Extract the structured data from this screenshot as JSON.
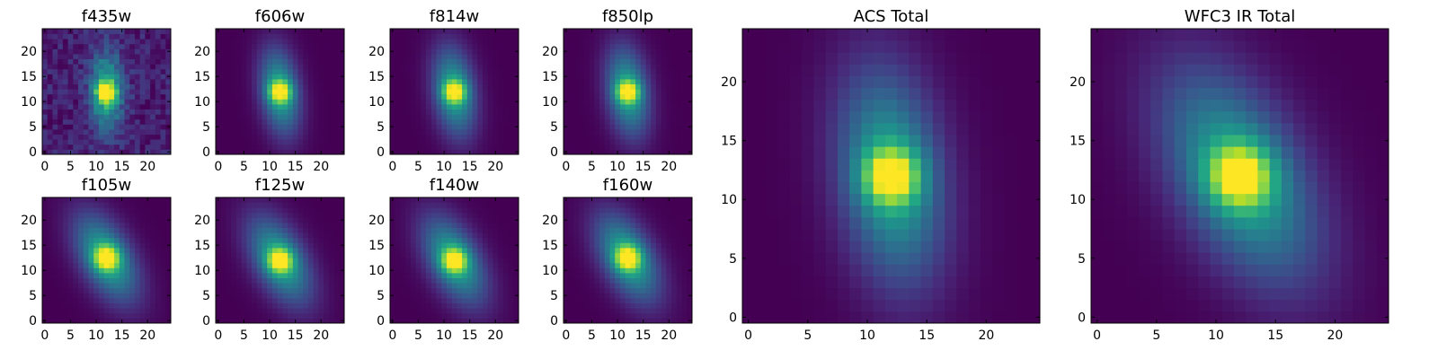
{
  "chart_data": [
    {
      "type": "heatmap",
      "title": "f435w",
      "xlim": [
        0,
        24
      ],
      "ylim": [
        0,
        24
      ],
      "xticks": [
        0,
        5,
        10,
        15,
        20
      ],
      "yticks": [
        0,
        5,
        10,
        15,
        20
      ],
      "grid_size": 25,
      "center": [
        12,
        12
      ],
      "core_sigma": 1.4,
      "halo_sigma": [
        2.2,
        5.5
      ],
      "angle_deg": 0,
      "noise": 0.16,
      "colormap": "viridis"
    },
    {
      "type": "heatmap",
      "title": "f606w",
      "xlim": [
        0,
        24
      ],
      "ylim": [
        0,
        24
      ],
      "xticks": [
        0,
        5,
        10,
        15,
        20
      ],
      "yticks": [
        0,
        5,
        10,
        15,
        20
      ],
      "grid_size": 25,
      "center": [
        12,
        12
      ],
      "core_sigma": 1.5,
      "halo_sigma": [
        2.6,
        6.0
      ],
      "angle_deg": -8,
      "noise": 0.0,
      "colormap": "viridis"
    },
    {
      "type": "heatmap",
      "title": "f814w",
      "xlim": [
        0,
        24
      ],
      "ylim": [
        0,
        24
      ],
      "xticks": [
        0,
        5,
        10,
        15,
        20
      ],
      "yticks": [
        0,
        5,
        10,
        15,
        20
      ],
      "grid_size": 25,
      "center": [
        12,
        12
      ],
      "core_sigma": 1.5,
      "halo_sigma": [
        2.8,
        6.2
      ],
      "angle_deg": -8,
      "noise": 0.0,
      "colormap": "viridis"
    },
    {
      "type": "heatmap",
      "title": "f850lp",
      "xlim": [
        0,
        24
      ],
      "ylim": [
        0,
        24
      ],
      "xticks": [
        0,
        5,
        10,
        15,
        20
      ],
      "yticks": [
        0,
        5,
        10,
        15,
        20
      ],
      "grid_size": 25,
      "center": [
        12,
        12
      ],
      "core_sigma": 1.5,
      "halo_sigma": [
        2.8,
        6.2
      ],
      "angle_deg": -8,
      "noise": 0.0,
      "colormap": "viridis"
    },
    {
      "type": "heatmap",
      "title": "f105w",
      "xlim": [
        0,
        24
      ],
      "ylim": [
        0,
        24
      ],
      "xticks": [
        0,
        5,
        10,
        15,
        20
      ],
      "yticks": [
        0,
        5,
        10,
        15,
        20
      ],
      "grid_size": 25,
      "center": [
        12,
        12.5
      ],
      "core_sigma": 1.7,
      "halo_sigma": [
        3.4,
        6.6
      ],
      "angle_deg": -28,
      "noise": 0.0,
      "colormap": "viridis"
    },
    {
      "type": "heatmap",
      "title": "f125w",
      "xlim": [
        0,
        24
      ],
      "ylim": [
        0,
        24
      ],
      "xticks": [
        0,
        5,
        10,
        15,
        20
      ],
      "yticks": [
        0,
        5,
        10,
        15,
        20
      ],
      "grid_size": 25,
      "center": [
        12,
        12
      ],
      "core_sigma": 1.7,
      "halo_sigma": [
        3.4,
        6.6
      ],
      "angle_deg": -28,
      "noise": 0.0,
      "colormap": "viridis"
    },
    {
      "type": "heatmap",
      "title": "f140w",
      "xlim": [
        0,
        24
      ],
      "ylim": [
        0,
        24
      ],
      "xticks": [
        0,
        5,
        10,
        15,
        20
      ],
      "yticks": [
        0,
        5,
        10,
        15,
        20
      ],
      "grid_size": 25,
      "center": [
        12,
        12
      ],
      "core_sigma": 1.7,
      "halo_sigma": [
        3.4,
        6.6
      ],
      "angle_deg": -28,
      "noise": 0.0,
      "colormap": "viridis"
    },
    {
      "type": "heatmap",
      "title": "f160w",
      "xlim": [
        0,
        24
      ],
      "ylim": [
        0,
        24
      ],
      "xticks": [
        0,
        5,
        10,
        15,
        20
      ],
      "yticks": [
        0,
        5,
        10,
        15,
        20
      ],
      "grid_size": 25,
      "center": [
        12,
        12.5
      ],
      "core_sigma": 1.7,
      "halo_sigma": [
        3.4,
        6.6
      ],
      "angle_deg": -28,
      "noise": 0.0,
      "colormap": "viridis"
    },
    {
      "type": "heatmap",
      "title": "ACS Total",
      "xlim": [
        0,
        24
      ],
      "ylim": [
        0,
        24
      ],
      "xticks": [
        0,
        5,
        10,
        15,
        20
      ],
      "yticks": [
        0,
        5,
        10,
        15,
        20
      ],
      "grid_size": 25,
      "center": [
        12,
        12
      ],
      "core_sigma": 1.6,
      "halo_sigma": [
        3.0,
        6.4
      ],
      "angle_deg": -8,
      "noise": 0.0,
      "colormap": "viridis"
    },
    {
      "type": "heatmap",
      "title": "WFC3 IR Total",
      "xlim": [
        0,
        24
      ],
      "ylim": [
        0,
        24
      ],
      "xticks": [
        0,
        5,
        10,
        15,
        20
      ],
      "yticks": [
        0,
        5,
        10,
        15,
        20
      ],
      "grid_size": 25,
      "center": [
        12,
        12
      ],
      "core_sigma": 1.8,
      "halo_sigma": [
        3.6,
        6.8
      ],
      "angle_deg": -28,
      "noise": 0.0,
      "colormap": "viridis"
    }
  ]
}
